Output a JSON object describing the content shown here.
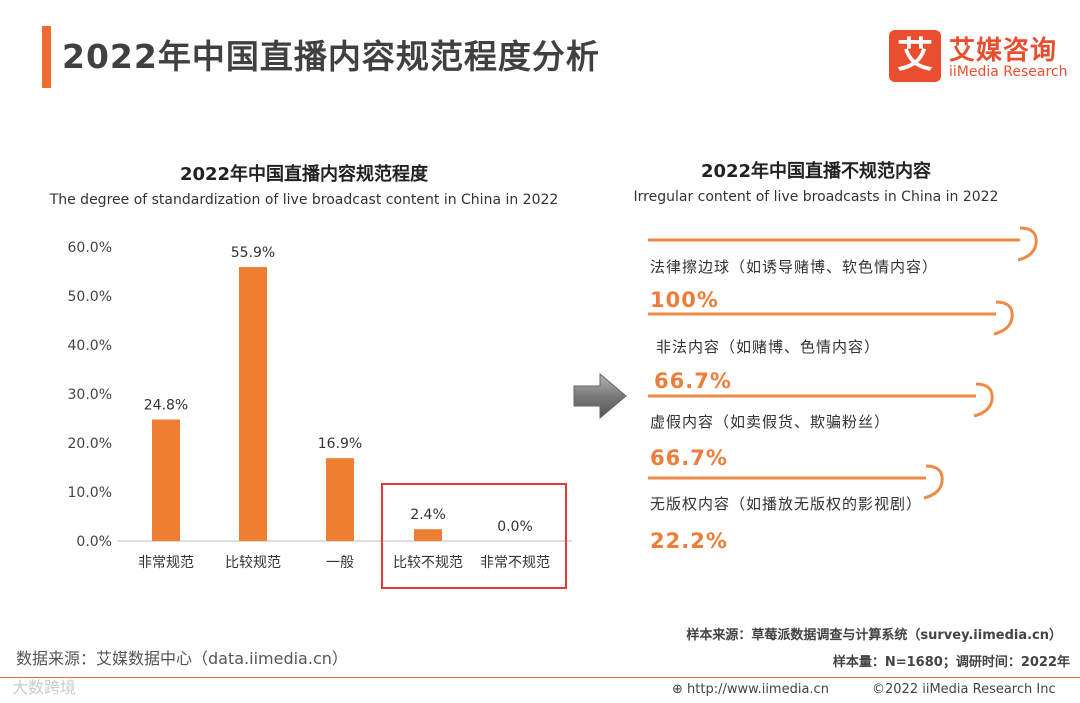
{
  "header": {
    "title": "2022年中国直播内容规范程度分析",
    "logo_mark": "艾",
    "logo_cn": "艾媒咨询",
    "logo_en": "iiMedia Research"
  },
  "left_chart": {
    "title": "2022年中国直播内容规范程度",
    "subtitle": "The degree of standardization of live broadcast content in China in 2022"
  },
  "right_panel": {
    "title": "2022年中国直播不规范内容",
    "subtitle": "Irregular content of live broadcasts in China in 2022",
    "items": [
      {
        "label": "法律擦边球（如诱导赌博、软色情内容）",
        "value": "100%"
      },
      {
        "label": "非法内容（如赌博、色情内容）",
        "value": "66.7%"
      },
      {
        "label": "虚假内容（如卖假货、欺骗粉丝）",
        "value": "66.7%"
      },
      {
        "label": "无版权内容（如播放无版权的影视剧）",
        "value": "22.2%"
      }
    ]
  },
  "chart_data": {
    "type": "bar",
    "categories": [
      "非常规范",
      "比较规范",
      "一般",
      "比较不规范",
      "非常不规范"
    ],
    "values": [
      24.8,
      55.9,
      16.9,
      2.4,
      0.0
    ],
    "value_labels": [
      "24.8%",
      "55.9%",
      "16.9%",
      "2.4%",
      "0.0%"
    ],
    "yticks": [
      0,
      10,
      20,
      30,
      40,
      50,
      60
    ],
    "ytick_labels": [
      "0.0%",
      "10.0%",
      "20.0%",
      "30.0%",
      "40.0%",
      "50.0%",
      "60.0%"
    ],
    "ylim": [
      0,
      60
    ],
    "bar_color": "#ef7d32",
    "highlight_color": "#e53935",
    "highlight_categories": [
      "比较不规范",
      "非常不规范"
    ],
    "grid": false
  },
  "footer": {
    "data_source": "数据来源：艾媒数据中心（data.iimedia.cn）",
    "sample_source": "样本来源：草莓派数据调查与计算系统（survey.iimedia.cn）",
    "sample_size": "样本量：N=1680；调研时间：2022年",
    "url": "http://www.iimedia.cn",
    "copyright": "©2022  iiMedia Research  Inc",
    "watermark": "大数跨境"
  },
  "colors": {
    "accent": "#ef6b2f",
    "value_orange": "#ef7d3a",
    "logo_red": "#e94e2f"
  }
}
